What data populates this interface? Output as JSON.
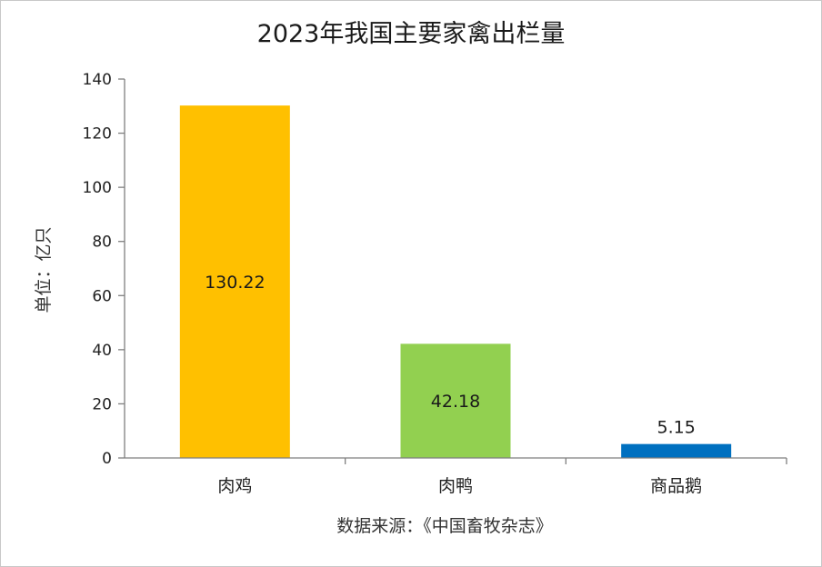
{
  "chart_data": {
    "type": "bar",
    "title": "2023年我国主要家禽出栏量",
    "ylabel": "单位：亿只",
    "xlabel": "",
    "categories": [
      "肉鸡",
      "肉鸭",
      "商品鹅"
    ],
    "values": [
      130.22,
      42.18,
      5.15
    ],
    "value_labels": [
      "130.22",
      "42.18",
      "5.15"
    ],
    "colors": [
      "#FFC000",
      "#92D050",
      "#0070C0"
    ],
    "label_positions": [
      "inside",
      "inside",
      "above"
    ],
    "ylim": [
      0,
      140
    ],
    "yticks": [
      0,
      20,
      40,
      60,
      80,
      100,
      120,
      140
    ],
    "grid": false,
    "legend": "none",
    "source": "数据来源：《中国畜牧杂志》"
  }
}
